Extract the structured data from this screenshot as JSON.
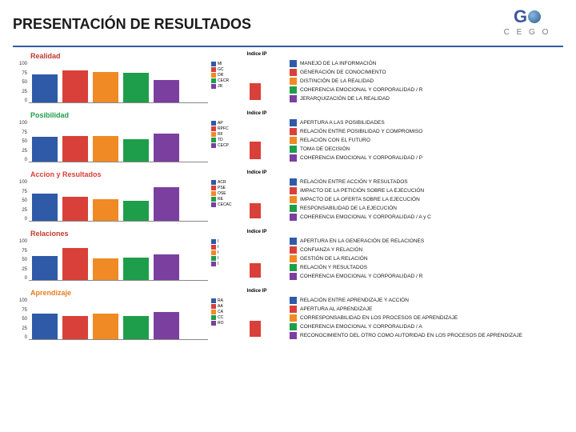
{
  "page": {
    "title": "PRESENTACIÓN DE RESULTADOS",
    "logo_letter": "G",
    "logo_text": "C E G O"
  },
  "palette": {
    "blue": "#2f5aa8",
    "red": "#d9403a",
    "orange": "#f08a24",
    "green": "#1e9e4a",
    "purple": "#7b3fa0",
    "indice_red": "#d9403a",
    "title_realidad": "#c0392b",
    "title_posibilidad": "#1e9e4a",
    "title_accion": "#d9403a",
    "title_relaciones": "#c0392b",
    "title_aprendizaje": "#e67e22"
  },
  "panels": [
    {
      "key": "realidad",
      "title": "Realidad",
      "title_color_key": "title_realidad",
      "ymax": 100,
      "yticks": [
        100,
        75,
        50,
        25,
        0
      ],
      "series": [
        {
          "code": "MI",
          "color_key": "blue",
          "value": 68
        },
        {
          "code": "GC",
          "color_key": "red",
          "value": 78
        },
        {
          "code": "DR",
          "color_key": "orange",
          "value": 74
        },
        {
          "code": "CECR",
          "color_key": "green",
          "value": 72
        },
        {
          "code": "JR",
          "color_key": "purple",
          "value": 55
        }
      ],
      "indice_label": "Indice IP",
      "indice_value": 40,
      "indice_max": 100,
      "legend": [
        {
          "color_key": "blue",
          "label": "MANEJO DE LA INFORMACIÓN"
        },
        {
          "color_key": "red",
          "label": "GENERACIÓN DE CONOCIMIENTO"
        },
        {
          "color_key": "orange",
          "label": "DISTINCIÓN DE LA REALIDAD"
        },
        {
          "color_key": "green",
          "label": "COHERENCIA EMOCIONAL Y CORPORALIDAD / R"
        },
        {
          "color_key": "purple",
          "label": "JERARQUIZACIÓN DE LA REALIDAD"
        }
      ]
    },
    {
      "key": "posibilidad",
      "title": "Posibilidad",
      "title_color_key": "title_posibilidad",
      "ymax": 100,
      "yticks": [
        100,
        75,
        50,
        25,
        0
      ],
      "series": [
        {
          "code": "AP",
          "color_key": "blue",
          "value": 60
        },
        {
          "code": "RPFC",
          "color_key": "red",
          "value": 62
        },
        {
          "code": "RF",
          "color_key": "orange",
          "value": 63
        },
        {
          "code": "TD",
          "color_key": "green",
          "value": 55
        },
        {
          "code": "CECP",
          "color_key": "purple",
          "value": 68
        }
      ],
      "indice_label": "Indice IP",
      "indice_value": 42,
      "indice_max": 100,
      "legend": [
        {
          "color_key": "blue",
          "label": "APERTURA A LAS POSIBILIDADES"
        },
        {
          "color_key": "red",
          "label": "RELACIÓN ENTRE POSIBILIDAD Y COMPROMISO"
        },
        {
          "color_key": "orange",
          "label": "RELACIÓN CON EL FUTURO"
        },
        {
          "color_key": "green",
          "label": "TOMA DE DECISIÓN"
        },
        {
          "color_key": "purple",
          "label": "COHERENCIA EMOCIONAL Y CORPORALIDAD / P"
        }
      ]
    },
    {
      "key": "accion",
      "title": "Accion y Resultados",
      "title_color_key": "title_accion",
      "ymax": 100,
      "yticks": [
        100,
        75,
        50,
        25,
        0
      ],
      "series": [
        {
          "code": "ACR",
          "color_key": "blue",
          "value": 66
        },
        {
          "code": "PSE",
          "color_key": "red",
          "value": 58
        },
        {
          "code": "OSE",
          "color_key": "orange",
          "value": 52
        },
        {
          "code": "RE",
          "color_key": "green",
          "value": 50
        },
        {
          "code": "CECAC",
          "color_key": "purple",
          "value": 82
        }
      ],
      "indice_label": "Indice IP",
      "indice_value": 36,
      "indice_max": 100,
      "legend": [
        {
          "color_key": "blue",
          "label": "RELACIÓN ENTRE ACCIÓN Y RESULTADOS"
        },
        {
          "color_key": "red",
          "label": "IMPACTO DE LA PETICIÓN SOBRE LA EJECUCIÓN"
        },
        {
          "color_key": "orange",
          "label": "IMPACTO DE LA OFERTA SOBRE LA EJECUCIÓN"
        },
        {
          "color_key": "green",
          "label": "RESPONSABILIDAD DE LA EJECUCIÓN"
        },
        {
          "color_key": "purple",
          "label": "COHERENCIA EMOCIONAL Y CORPORALIDAD / A y C"
        }
      ]
    },
    {
      "key": "relaciones",
      "title": "Relaciones",
      "title_color_key": "title_relaciones",
      "ymax": 100,
      "yticks": [
        100,
        75,
        50,
        25,
        0
      ],
      "series": [
        {
          "code": "I",
          "color_key": "blue",
          "value": 58
        },
        {
          "code": "I",
          "color_key": "red",
          "value": 78
        },
        {
          "code": "I",
          "color_key": "orange",
          "value": 52
        },
        {
          "code": "I",
          "color_key": "green",
          "value": 54
        },
        {
          "code": "I",
          "color_key": "purple",
          "value": 62
        }
      ],
      "indice_label": "Indice IP",
      "indice_value": 34,
      "indice_max": 100,
      "legend": [
        {
          "color_key": "blue",
          "label": "APERTURA EN LA GENERACIÓN DE RELACIONES"
        },
        {
          "color_key": "red",
          "label": "CONFIANZA Y RELACIÓN"
        },
        {
          "color_key": "orange",
          "label": "GESTIÓN DE LA RELACIÓN"
        },
        {
          "color_key": "green",
          "label": "RELACIÓN Y RESULTADOS"
        },
        {
          "color_key": "purple",
          "label": "COHERENCIA EMOCIONAL Y CORPORALIDAD / R"
        }
      ]
    },
    {
      "key": "aprendizaje",
      "title": "Aprendizaje",
      "title_color_key": "title_aprendizaje",
      "ymax": 100,
      "yticks": [
        100,
        75,
        50,
        25,
        0
      ],
      "series": [
        {
          "code": "RA",
          "color_key": "blue",
          "value": 63
        },
        {
          "code": "AA",
          "color_key": "red",
          "value": 56
        },
        {
          "code": "CA",
          "color_key": "orange",
          "value": 62
        },
        {
          "code": "CC",
          "color_key": "green",
          "value": 57
        },
        {
          "code": "RO",
          "color_key": "purple",
          "value": 66
        }
      ],
      "indice_label": "Indice IP",
      "indice_value": 38,
      "indice_max": 100,
      "legend": [
        {
          "color_key": "blue",
          "label": "RELACIÓN ENTRE APRENDIZAJE Y ACCIÓN"
        },
        {
          "color_key": "red",
          "label": "APERTURA AL APRENDIZAJE"
        },
        {
          "color_key": "orange",
          "label": "CORRESPONSABILIDAD EN LOS PROCESOS DE APRENDIZAJE"
        },
        {
          "color_key": "green",
          "label": "COHERENCIA EMOCIONAL Y CORPORALIDAD / A"
        },
        {
          "color_key": "purple",
          "label": "RECONOCIMIENTO DEL OTRO COMO AUTORIDAD EN LOS PROCESOS DE APRENDIZAJE"
        }
      ]
    }
  ]
}
